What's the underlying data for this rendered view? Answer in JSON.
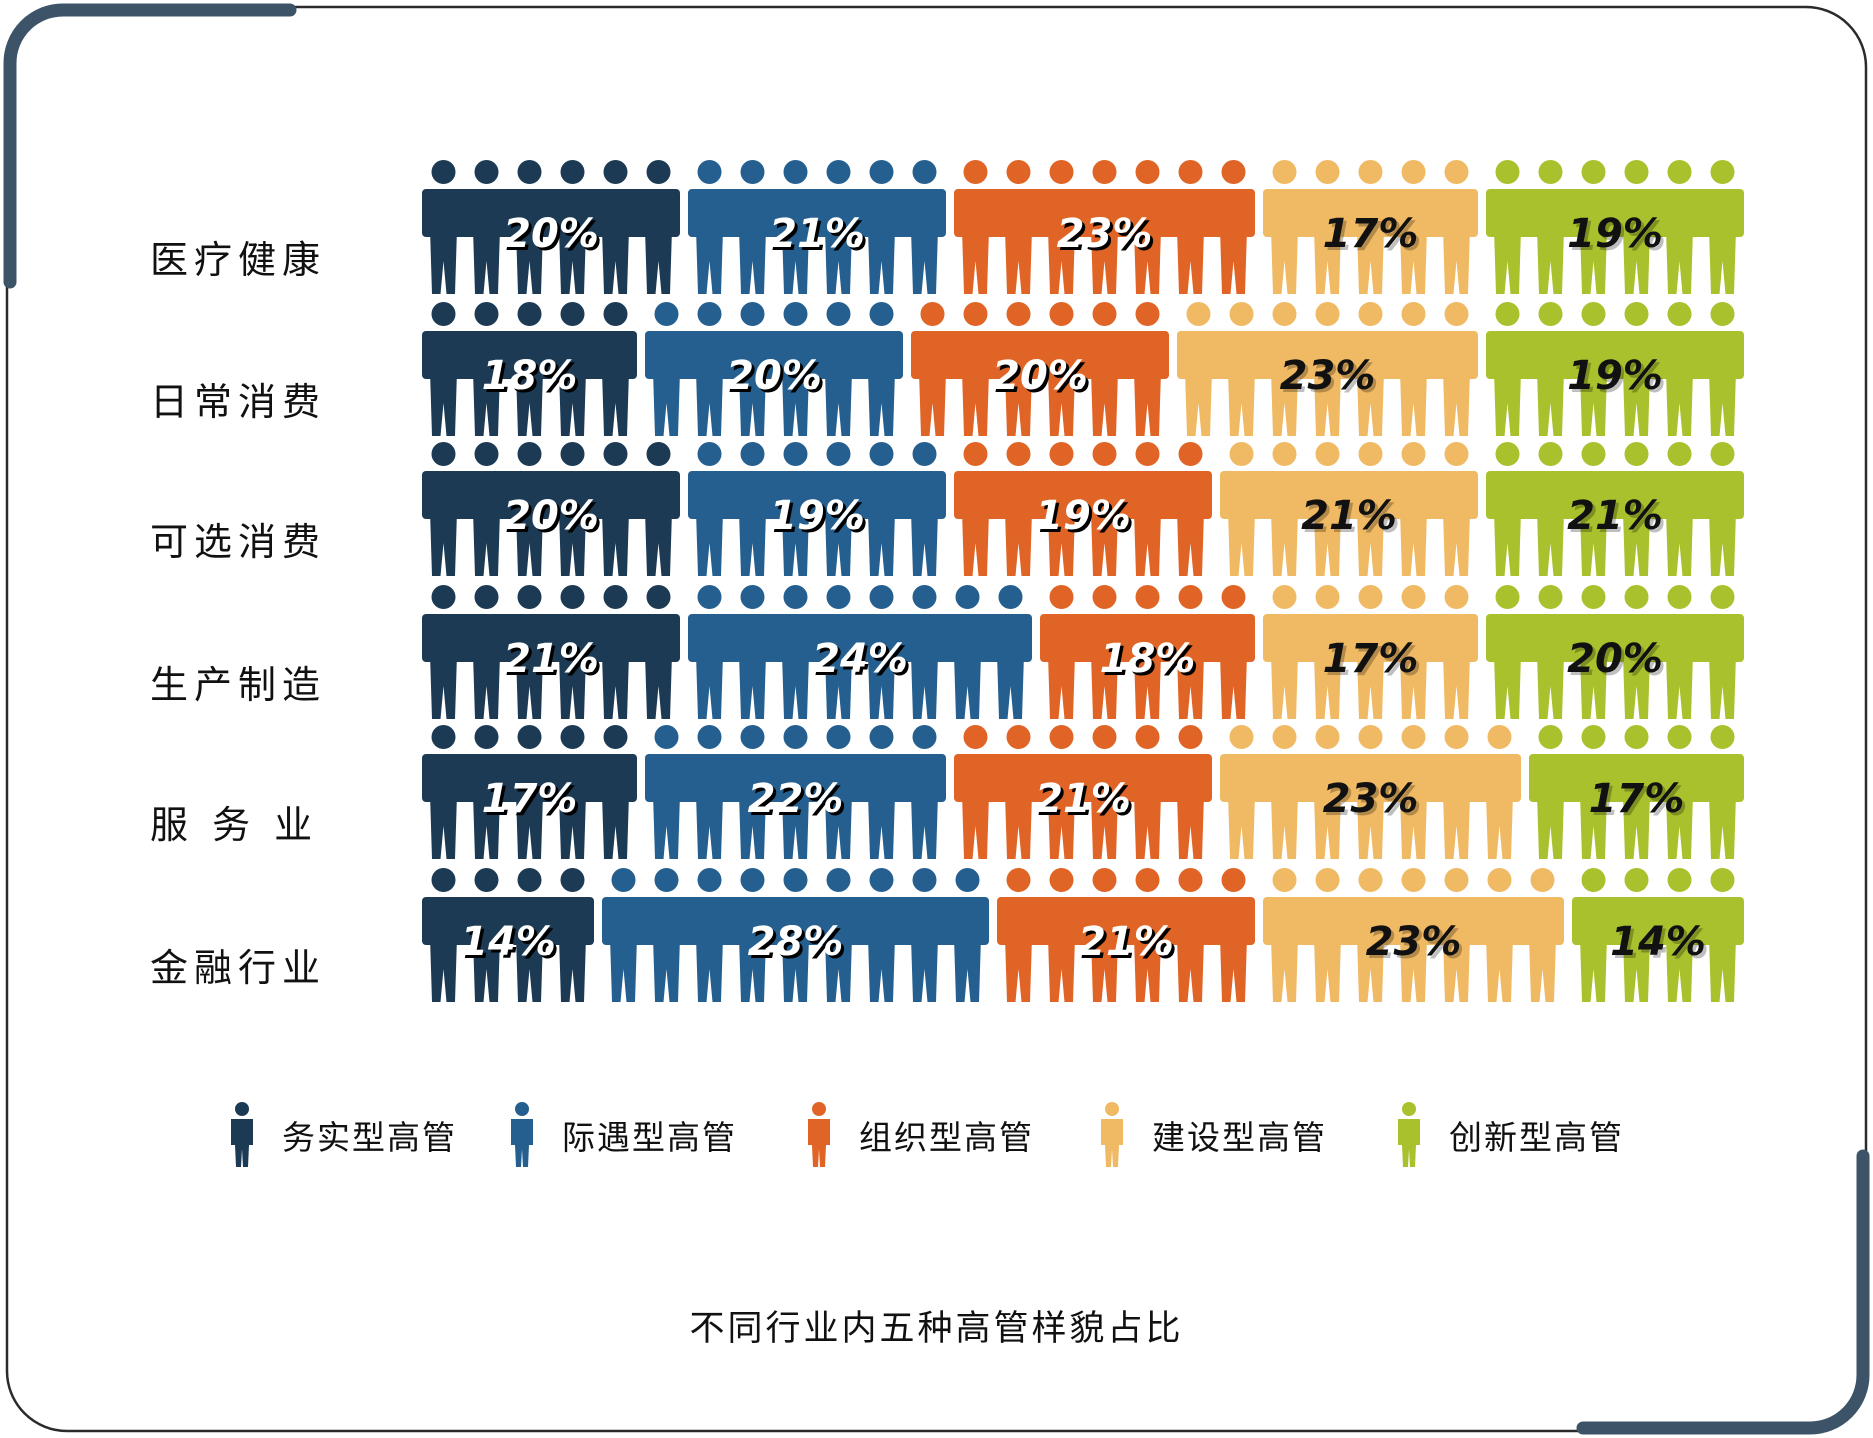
{
  "chart_data": {
    "type": "bar",
    "stacked": true,
    "percent": true,
    "title": "不同行业内五种高管样貌占比",
    "categories": [
      "医疗健康",
      "日常消费",
      "可选消费",
      "生产制造",
      "服务业",
      "金融行业"
    ],
    "category_labels": [
      "医疗健康",
      "日常消费",
      "可选消费",
      "生产制造",
      "服 务 业",
      "金融行业"
    ],
    "series": [
      {
        "name": "务实型高管",
        "color": "#1d3a55",
        "label_color": "#ffffff",
        "values": [
          20,
          18,
          20,
          21,
          17,
          14
        ],
        "labels": [
          "20%",
          "18%",
          "20%",
          "21%",
          "17%",
          "14%"
        ]
      },
      {
        "name": "际遇型高管",
        "color": "#255f8f",
        "label_color": "#ffffff",
        "values": [
          21,
          20,
          19,
          24,
          22,
          28
        ],
        "labels": [
          "21%",
          "20%",
          "19%",
          "24%",
          "22%",
          "28%"
        ]
      },
      {
        "name": "组织型高管",
        "color": "#e06425",
        "label_color": "#ffffff",
        "values": [
          23,
          20,
          19,
          18,
          21,
          21
        ],
        "labels": [
          "23%",
          "20%",
          "19%",
          "18%",
          "21%",
          "21%"
        ]
      },
      {
        "name": "建设型高管",
        "color": "#f0b964",
        "label_color": "#111111",
        "values": [
          17,
          23,
          21,
          17,
          23,
          23
        ],
        "labels": [
          "17%",
          "23%",
          "21%",
          "17%",
          "23%",
          "23%"
        ]
      },
      {
        "name": "创新型高管",
        "color": "#a8c12c",
        "label_color": "#111111",
        "values": [
          19,
          19,
          21,
          20,
          17,
          14
        ],
        "labels": [
          "19%",
          "19%",
          "21%",
          "20%",
          "17%",
          "14%"
        ]
      }
    ],
    "people_counts": [
      [
        6,
        6,
        7,
        5,
        6
      ],
      [
        5,
        6,
        6,
        7,
        6
      ],
      [
        6,
        6,
        6,
        6,
        6
      ],
      [
        6,
        8,
        5,
        5,
        6
      ],
      [
        5,
        7,
        6,
        7,
        5
      ],
      [
        4,
        9,
        6,
        7,
        4
      ]
    ],
    "legend_position": "bottom",
    "grid": false
  },
  "frame_color": "#3d5368",
  "caption": "不同行业内五种高管样貌占比"
}
